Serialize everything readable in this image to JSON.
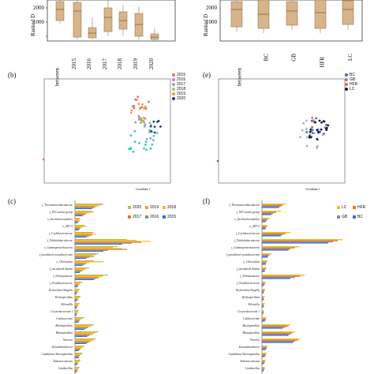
{
  "panels": {
    "a": {
      "ylabel": "Ranked D",
      "yticks": [
        "2000",
        "1000"
      ],
      "categories": [
        "between",
        "2015",
        "2016",
        "2017",
        "2018",
        "2019",
        "2020"
      ]
    },
    "d": {
      "ylabel": "Ranked D",
      "yticks": [
        "2000",
        "1000"
      ],
      "categories": [
        "between",
        "BC",
        "GB",
        "HFR",
        "LC"
      ]
    },
    "b": {
      "label": "(b)",
      "legend": [
        "2015",
        "2016",
        "2017",
        "2018",
        "2019",
        "2020"
      ],
      "ylabel": "Coordinate 2",
      "xlabel": "Coordinate 1",
      "yticks": [
        "0.15",
        "0.10",
        "0.05",
        "0",
        "-0.05",
        "-0.10",
        "-0.15"
      ],
      "xticks": [
        "-0.7",
        "-0.6",
        "-0.5",
        "-0.4",
        "-0.3",
        "-0.2",
        "-0.1",
        "0.0",
        "0.1"
      ]
    },
    "e": {
      "label": "(e)",
      "legend": [
        "BC",
        "GB",
        "HFR",
        "LC"
      ],
      "ylabel": "Coordinate 2",
      "xlabel": "Coordinate 1",
      "yticks": [
        "0.15",
        "0.10",
        "0.05",
        "0",
        "-0.05",
        "-0.10",
        "-0.15"
      ],
      "xticks": [
        "-0.7",
        "-0.6",
        "-0.5",
        "-0.4",
        "-0.3",
        "-0.2",
        "-0.1",
        "0.0",
        "0.1"
      ]
    },
    "c": {
      "label": "(c)",
      "legend": [
        "2020",
        "2019",
        "2018",
        "2017",
        "2016",
        "2015"
      ]
    },
    "f": {
      "label": "(f)",
      "legend": [
        "LC",
        "HFR",
        "GB",
        "BC"
      ]
    }
  },
  "colors": {
    "box": "#d8b48a",
    "box_edge": "#9a7b55",
    "y2015": "#e8706a",
    "y2016": "#c77ad8",
    "y2017": "#7fa8e0",
    "y2018": "#a8c640",
    "y2019": "#f0a040",
    "y2020": "#1f3b8f",
    "teal": "#3ec9b0",
    "BC": "#3b6bd6",
    "GB": "#8a8a8a",
    "HFR": "#e07a2e",
    "LC": "#f0c020"
  },
  "taxa": [
    "f_Thermonaerobaculaceae",
    "f_NS7 marine group",
    "o_Saccharimonadales",
    "o_SD7-5",
    "f_Cyclobacteriaceae",
    "f_Thiohalobaculaceae",
    "c_Gammaproteobacteria",
    "f_uncultured cyanobacterium",
    "o_Chloroplast",
    "f_uncultured diatom",
    "f_Nitrospinaceae",
    "f_Oxalobacteraceae",
    "Escherichia-Shigella",
    "Herbaspirillum",
    "Kiloniella",
    "Corynebacterium 1",
    "Cutibacterium",
    "Rhodopirellula",
    "Blastopirellula",
    "Woeseia",
    "Zeaxanthinibacter",
    "Candidatus Nitrosopumilus",
    "Endozoicomonas",
    "Limibacillus"
  ],
  "chart_data": [
    {
      "type": "bar",
      "panel": "c",
      "orientation": "horizontal",
      "categories": [
        "f_Thermonaerobaculaceae",
        "f_NS7 marine group",
        "o_Saccharimonadales",
        "o_SD7-5",
        "f_Cyclobacteriaceae",
        "f_Thiohalobaculaceae",
        "c_Gammaproteobacteria",
        "f_uncultured cyanobacterium",
        "o_Chloroplast",
        "f_uncultured diatom",
        "f_Nitrospinaceae",
        "f_Oxalobacteraceae",
        "Escherichia-Shigella",
        "Herbaspirillum",
        "Kiloniella",
        "Corynebacterium 1",
        "Cutibacterium",
        "Rhodopirellula",
        "Blastopirellula",
        "Woeseia",
        "Zeaxanthinibacter",
        "Candidatus Nitrosopumilus",
        "Endozoicomonas",
        "Limibacillus"
      ],
      "series": [
        {
          "name": "2020",
          "values": [
            0.3,
            0.18,
            0.05,
            0.1,
            0.2,
            0.55,
            0.45,
            0.25,
            0.2,
            0.15,
            0.35,
            0.08,
            0.05,
            0.06,
            0.05,
            0.04,
            0.1,
            0.2,
            0.25,
            0.22,
            0.1,
            0.08,
            0.06,
            0.05
          ]
        },
        {
          "name": "2019",
          "values": [
            0.28,
            0.2,
            0.06,
            0.12,
            0.18,
            0.65,
            0.4,
            0.22,
            0.3,
            0.12,
            0.3,
            0.06,
            0.04,
            0.05,
            0.04,
            0.03,
            0.08,
            0.18,
            0.22,
            0.2,
            0.08,
            0.07,
            0.05,
            0.04
          ]
        },
        {
          "name": "2018",
          "values": [
            0.25,
            0.15,
            0.04,
            0.08,
            0.22,
            0.8,
            0.5,
            0.18,
            0.15,
            0.1,
            0.28,
            0.05,
            0.03,
            0.04,
            0.03,
            0.03,
            0.06,
            0.16,
            0.2,
            0.18,
            0.07,
            0.06,
            0.04,
            0.03
          ]
        },
        {
          "name": "2017",
          "values": [
            0.22,
            0.12,
            0.05,
            0.06,
            0.18,
            0.7,
            0.55,
            0.2,
            0.12,
            0.08,
            0.25,
            0.04,
            0.03,
            0.03,
            0.03,
            0.02,
            0.05,
            0.14,
            0.18,
            0.16,
            0.06,
            0.05,
            0.03,
            0.03
          ]
        },
        {
          "name": "2016",
          "values": [
            0.2,
            0.1,
            0.03,
            0.05,
            0.15,
            0.6,
            0.35,
            0.15,
            0.1,
            0.06,
            0.22,
            0.03,
            0.02,
            0.03,
            0.02,
            0.02,
            0.04,
            0.12,
            0.15,
            0.14,
            0.05,
            0.04,
            0.03,
            0.02
          ]
        },
        {
          "name": "2015",
          "values": [
            0.18,
            0.08,
            0.03,
            0.04,
            0.12,
            0.5,
            0.3,
            0.12,
            0.08,
            0.05,
            0.2,
            0.03,
            0.02,
            0.02,
            0.02,
            0.02,
            0.04,
            0.1,
            0.13,
            0.12,
            0.04,
            0.04,
            0.02,
            0.02
          ]
        }
      ]
    },
    {
      "type": "bar",
      "panel": "f",
      "orientation": "horizontal",
      "categories": [
        "f_Thermonaerobaculaceae",
        "f_NS7 marine group",
        "o_Saccharimonadales",
        "o_SD7-5",
        "f_Cyclobacteriaceae",
        "f_Thiohalobaculaceae",
        "c_Gammaproteobacteria",
        "f_uncultured cyanobacterium",
        "o_Chloroplast",
        "f_uncultured diatom",
        "f_Nitrospinaceae",
        "f_Oxalobacteraceae",
        "Escherichia-Shigella",
        "Herbaspirillum",
        "Kiloniella",
        "Corynebacterium 1",
        "Cutibacterium",
        "Rhodopirellula",
        "Blastopirellula",
        "Woeseia",
        "Zeaxanthinibacter",
        "Candidatus Nitrosopumilus",
        "Endozoicomonas",
        "Limibacillus"
      ],
      "series": [
        {
          "name": "LC",
          "values": [
            0.25,
            0.2,
            0.08,
            0.06,
            0.3,
            0.85,
            0.4,
            0.1,
            0.06,
            0.05,
            0.45,
            0.04,
            0.03,
            0.03,
            0.03,
            0.02,
            0.05,
            0.3,
            0.35,
            0.4,
            0.06,
            0.05,
            0.04,
            0.03
          ]
        },
        {
          "name": "HFR",
          "values": [
            0.22,
            0.15,
            0.06,
            0.05,
            0.25,
            0.8,
            0.35,
            0.08,
            0.05,
            0.04,
            0.4,
            0.03,
            0.03,
            0.02,
            0.02,
            0.02,
            0.04,
            0.28,
            0.32,
            0.38,
            0.05,
            0.04,
            0.03,
            0.03
          ]
        },
        {
          "name": "GB",
          "values": [
            0.2,
            0.12,
            0.05,
            0.04,
            0.22,
            0.75,
            0.3,
            0.07,
            0.04,
            0.03,
            0.35,
            0.03,
            0.02,
            0.02,
            0.02,
            0.02,
            0.04,
            0.25,
            0.3,
            0.35,
            0.05,
            0.04,
            0.03,
            0.02
          ]
        },
        {
          "name": "BC",
          "values": [
            0.18,
            0.1,
            0.04,
            0.04,
            0.2,
            0.7,
            0.28,
            0.06,
            0.04,
            0.03,
            0.3,
            0.02,
            0.02,
            0.02,
            0.02,
            0.01,
            0.03,
            0.22,
            0.28,
            0.33,
            0.04,
            0.03,
            0.02,
            0.02
          ]
        }
      ]
    }
  ]
}
